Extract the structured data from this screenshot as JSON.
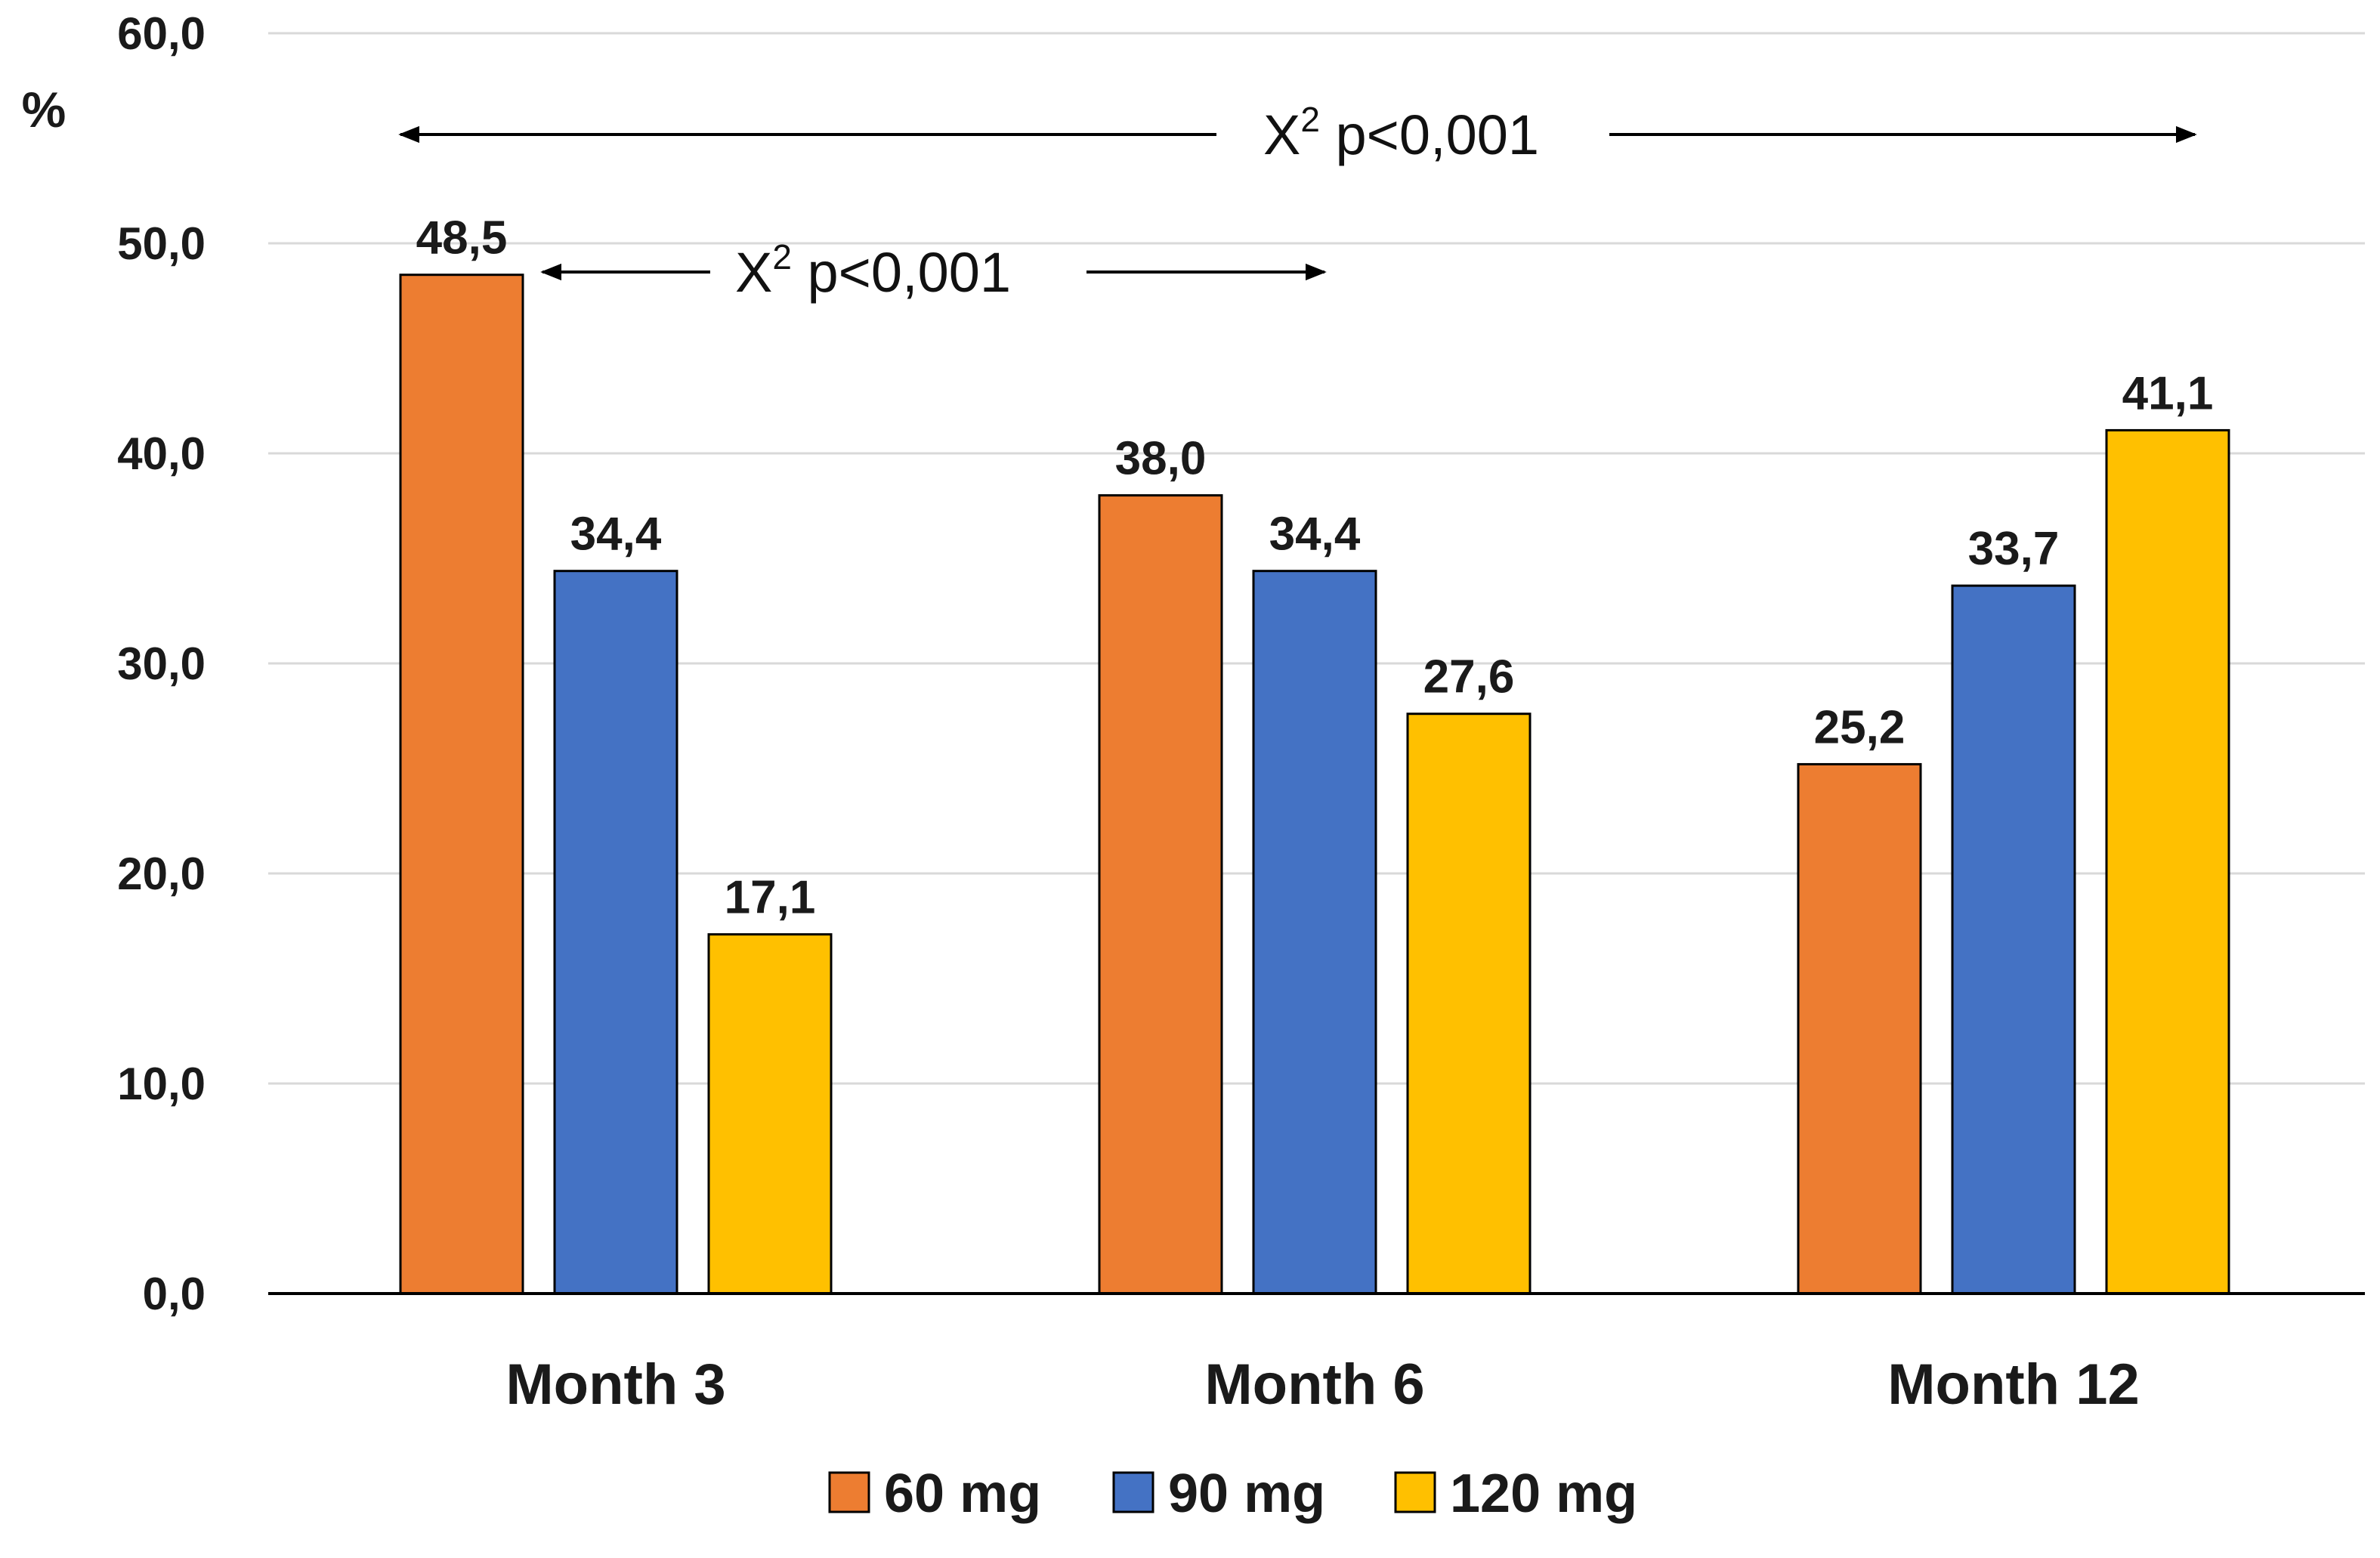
{
  "chart_data": {
    "type": "bar",
    "title": "",
    "xlabel": "",
    "ylabel": "%",
    "ylim": [
      0,
      60
    ],
    "yticks": [
      "0,0",
      "10,0",
      "20,0",
      "30,0",
      "40,0",
      "50,0",
      "60,0"
    ],
    "ytick_values": [
      0,
      10,
      20,
      30,
      40,
      50,
      60
    ],
    "categories": [
      "Month 3",
      "Month 6",
      "Month 12"
    ],
    "series": [
      {
        "name": "60 mg",
        "color": "#ed7d31",
        "values": [
          48.5,
          38.0,
          25.2
        ],
        "labels": [
          "48,5",
          "38,0",
          "25,2"
        ]
      },
      {
        "name": "90 mg",
        "color": "#4472c4",
        "values": [
          34.4,
          34.4,
          33.7
        ],
        "labels": [
          "34,4",
          "34,4",
          "33,7"
        ]
      },
      {
        "name": "120 mg",
        "color": "#ffc000",
        "values": [
          17.1,
          27.6,
          41.1
        ],
        "labels": [
          "17,1",
          "27,6",
          "41,1"
        ]
      }
    ],
    "grid": true,
    "legend_position": "bottom",
    "annotations": [
      {
        "id": "month3-vs-month12",
        "symbol": "X",
        "superscript": "2",
        "text": "p<0,001",
        "from": "Month 3",
        "to": "Month 12"
      },
      {
        "id": "month3-vs-month6",
        "symbol": "X",
        "superscript": "2",
        "text": "p<0,001",
        "from": "Month 3",
        "to": "Month 6"
      }
    ]
  }
}
